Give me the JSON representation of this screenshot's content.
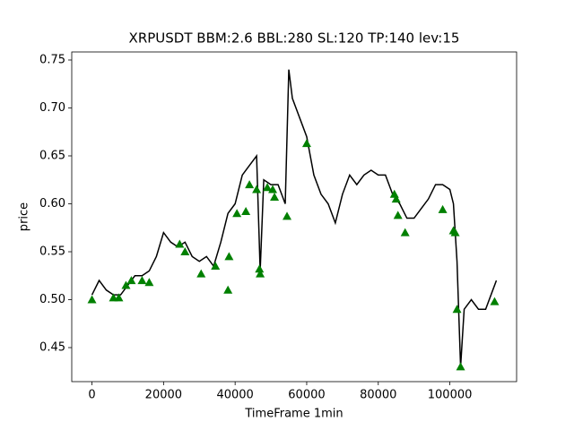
{
  "chart_data": {
    "type": "line",
    "title": "XRPUSDT BBM:2.6 BBL:280 SL:120 TP:140 lev:15",
    "xlabel": "TimeFrame 1min",
    "ylabel": "price",
    "xlim": [
      -5650,
      118650
    ],
    "ylim": [
      0.4145,
      0.7584
    ],
    "xticks": [
      0,
      20000,
      40000,
      60000,
      80000,
      100000
    ],
    "yticks": [
      0.45,
      {
        "value": 0.5,
        "label": "0.50"
      },
      0.55,
      {
        "value": 0.6,
        "label": "0.60"
      },
      0.65,
      {
        "value": 0.7,
        "label": "0.70"
      },
      0.75
    ],
    "series": [
      {
        "type": "line",
        "color": "#000000",
        "x": [
          0,
          2000,
          4000,
          6000,
          8000,
          10000,
          12000,
          14000,
          16000,
          18000,
          20000,
          22000,
          24000,
          26000,
          28000,
          30000,
          32000,
          34000,
          36000,
          38000,
          40000,
          42000,
          44000,
          46000,
          47000,
          48000,
          50000,
          52000,
          54000,
          55000,
          56000,
          58000,
          60000,
          62000,
          64000,
          66000,
          68000,
          70000,
          72000,
          74000,
          76000,
          78000,
          80000,
          82000,
          84000,
          86000,
          88000,
          90000,
          92000,
          94000,
          96000,
          98000,
          100000,
          101000,
          102000,
          103000,
          104000,
          106000,
          108000,
          110000,
          112000,
          113000
        ],
        "values": [
          0.505,
          0.52,
          0.51,
          0.505,
          0.505,
          0.515,
          0.525,
          0.525,
          0.53,
          0.545,
          0.57,
          0.56,
          0.555,
          0.56,
          0.545,
          0.54,
          0.545,
          0.535,
          0.56,
          0.59,
          0.6,
          0.63,
          0.64,
          0.65,
          0.53,
          0.625,
          0.62,
          0.62,
          0.6,
          0.74,
          0.71,
          0.69,
          0.67,
          0.63,
          0.61,
          0.6,
          0.58,
          0.61,
          0.63,
          0.62,
          0.63,
          0.635,
          0.63,
          0.63,
          0.61,
          0.6,
          0.585,
          0.585,
          0.595,
          0.605,
          0.62,
          0.62,
          0.615,
          0.6,
          0.54,
          0.43,
          0.49,
          0.5,
          0.49,
          0.49,
          0.51,
          0.52
        ]
      },
      {
        "type": "scatter",
        "marker": "triangle",
        "color": "#008000",
        "x": [
          0,
          6000,
          7500,
          9500,
          11000,
          14000,
          16000,
          24500,
          26000,
          30500,
          34500,
          38000,
          38300,
          40500,
          43000,
          44000,
          46000,
          46800,
          47000,
          49000,
          50500,
          51000,
          54500,
          60000,
          84500,
          85000,
          85500,
          87500,
          98000,
          101000,
          101500,
          102000,
          103000,
          112500
        ],
        "values": [
          0.5,
          0.502,
          0.502,
          0.515,
          0.52,
          0.52,
          0.518,
          0.558,
          0.55,
          0.527,
          0.535,
          0.51,
          0.545,
          0.59,
          0.592,
          0.62,
          0.615,
          0.532,
          0.527,
          0.617,
          0.615,
          0.607,
          0.587,
          0.663,
          0.61,
          0.605,
          0.588,
          0.57,
          0.594,
          0.572,
          0.57,
          0.49,
          0.43,
          0.498
        ]
      }
    ]
  }
}
